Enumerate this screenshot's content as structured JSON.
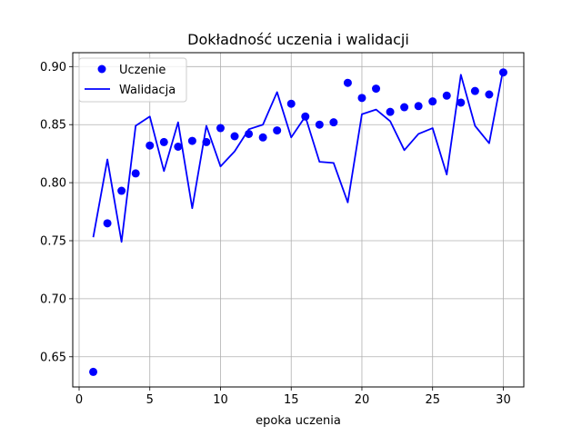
{
  "chart_data": {
    "type": "line",
    "title": "Dokładność uczenia i walidacji",
    "xlabel": "epoka uczenia",
    "ylabel": "",
    "xlim": [
      -0.45,
      31.45
    ],
    "ylim": [
      0.624,
      0.912
    ],
    "xticks": [
      0,
      5,
      10,
      15,
      20,
      25,
      30
    ],
    "yticks": [
      0.65,
      0.7,
      0.75,
      0.8,
      0.85,
      0.9
    ],
    "ytick_labels": [
      "0.65",
      "0.70",
      "0.75",
      "0.80",
      "0.85",
      "0.90"
    ],
    "grid": true,
    "legend": "top-left",
    "series": [
      {
        "name": "Uczenie",
        "style": "markers",
        "color": "#0000ff",
        "x": [
          1,
          2,
          3,
          4,
          5,
          6,
          7,
          8,
          9,
          10,
          11,
          12,
          13,
          14,
          15,
          16,
          17,
          18,
          19,
          20,
          21,
          22,
          23,
          24,
          25,
          26,
          27,
          28,
          29,
          30
        ],
        "values": [
          0.637,
          0.765,
          0.793,
          0.808,
          0.832,
          0.835,
          0.831,
          0.836,
          0.835,
          0.847,
          0.84,
          0.842,
          0.839,
          0.845,
          0.868,
          0.857,
          0.85,
          0.852,
          0.886,
          0.873,
          0.881,
          0.861,
          0.865,
          0.866,
          0.87,
          0.875,
          0.869,
          0.879,
          0.876,
          0.895
        ]
      },
      {
        "name": "Walidacja",
        "style": "line",
        "color": "#0000ff",
        "x": [
          1,
          2,
          3,
          4,
          5,
          6,
          7,
          8,
          9,
          10,
          11,
          12,
          13,
          14,
          15,
          16,
          17,
          18,
          19,
          20,
          21,
          22,
          23,
          24,
          25,
          26,
          27,
          28,
          29,
          30
        ],
        "values": [
          0.753,
          0.82,
          0.749,
          0.849,
          0.857,
          0.81,
          0.852,
          0.778,
          0.849,
          0.814,
          0.827,
          0.846,
          0.85,
          0.878,
          0.839,
          0.857,
          0.818,
          0.817,
          0.783,
          0.859,
          0.863,
          0.853,
          0.828,
          0.842,
          0.847,
          0.807,
          0.893,
          0.849,
          0.834,
          0.898
        ]
      }
    ]
  }
}
